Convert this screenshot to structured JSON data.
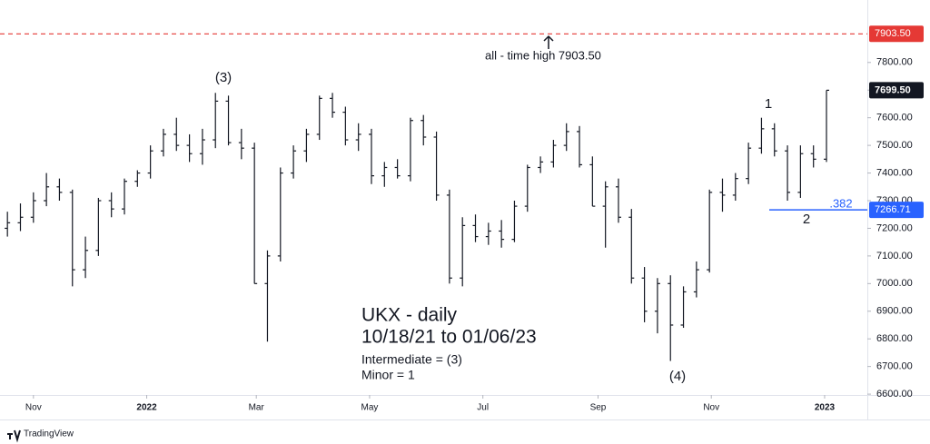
{
  "chart_data": {
    "type": "ohlc",
    "x": [
      "2021-10-18",
      "2021-10-25",
      "2021-11-01",
      "2021-11-08",
      "2021-11-15",
      "2021-11-22",
      "2021-11-29",
      "2021-12-06",
      "2021-12-13",
      "2021-12-20",
      "2021-12-27",
      "2022-01-03",
      "2022-01-10",
      "2022-01-17",
      "2022-01-24",
      "2022-01-31",
      "2022-02-07",
      "2022-02-14",
      "2022-02-21",
      "2022-02-28",
      "2022-03-07",
      "2022-03-14",
      "2022-03-21",
      "2022-03-28",
      "2022-04-04",
      "2022-04-11",
      "2022-04-18",
      "2022-04-25",
      "2022-05-02",
      "2022-05-09",
      "2022-05-16",
      "2022-05-23",
      "2022-05-30",
      "2022-06-06",
      "2022-06-13",
      "2022-06-20",
      "2022-06-27",
      "2022-07-04",
      "2022-07-11",
      "2022-07-18",
      "2022-07-25",
      "2022-08-01",
      "2022-08-08",
      "2022-08-15",
      "2022-08-22",
      "2022-08-29",
      "2022-09-05",
      "2022-09-12",
      "2022-09-19",
      "2022-09-26",
      "2022-10-03",
      "2022-10-10",
      "2022-10-17",
      "2022-10-24",
      "2022-10-31",
      "2022-11-07",
      "2022-11-14",
      "2022-11-21",
      "2022-11-28",
      "2022-12-05",
      "2022-12-12",
      "2022-12-19",
      "2022-12-26",
      "2023-01-02"
    ],
    "open": [
      7200,
      7220,
      7240,
      7300,
      7350,
      7330,
      7050,
      7120,
      7300,
      7270,
      7370,
      7400,
      7480,
      7540,
      7500,
      7470,
      7520,
      7660,
      7510,
      7490,
      7000,
      7100,
      7400,
      7480,
      7540,
      7670,
      7620,
      7520,
      7540,
      7390,
      7420,
      7390,
      7590,
      7530,
      7320,
      7020,
      7210,
      7170,
      7190,
      7160,
      7280,
      7420,
      7440,
      7500,
      7550,
      7430,
      7280,
      7350,
      7240,
      7020,
      6900,
      7000,
      6850,
      6970,
      7050,
      7330,
      7320,
      7380,
      7490,
      7560,
      7480,
      7330,
      7470,
      7450
    ],
    "high": [
      7260,
      7290,
      7330,
      7400,
      7380,
      7340,
      7170,
      7310,
      7330,
      7380,
      7410,
      7500,
      7560,
      7600,
      7540,
      7560,
      7690,
      7680,
      7560,
      7510,
      7120,
      7420,
      7500,
      7560,
      7680,
      7690,
      7640,
      7580,
      7560,
      7440,
      7450,
      7600,
      7610,
      7550,
      7340,
      7240,
      7250,
      7220,
      7230,
      7300,
      7430,
      7460,
      7520,
      7580,
      7570,
      7460,
      7370,
      7380,
      7270,
      7060,
      7020,
      7030,
      6990,
      7080,
      7340,
      7380,
      7400,
      7510,
      7600,
      7580,
      7500,
      7500,
      7500,
      7699.5
    ],
    "low": [
      7170,
      7190,
      7220,
      7280,
      7300,
      6990,
      7020,
      7100,
      7240,
      7250,
      7350,
      7380,
      7460,
      7480,
      7440,
      7430,
      7490,
      7500,
      7450,
      7000,
      6790,
      7080,
      7380,
      7440,
      7520,
      7600,
      7500,
      7480,
      7360,
      7350,
      7380,
      7370,
      7500,
      7300,
      7000,
      6990,
      7150,
      7140,
      7130,
      7150,
      7260,
      7400,
      7420,
      7480,
      7420,
      7280,
      7130,
      7220,
      7000,
      6860,
      6820,
      6720,
      6840,
      6950,
      7040,
      7260,
      7300,
      7360,
      7470,
      7460,
      7300,
      7310,
      7420,
      7440
    ],
    "close": [
      7220,
      7240,
      7300,
      7350,
      7330,
      7050,
      7120,
      7300,
      7270,
      7370,
      7400,
      7480,
      7540,
      7500,
      7470,
      7520,
      7660,
      7510,
      7490,
      7000,
      7100,
      7400,
      7480,
      7540,
      7670,
      7620,
      7520,
      7540,
      7390,
      7420,
      7390,
      7590,
      7530,
      7320,
      7020,
      7210,
      7170,
      7190,
      7160,
      7280,
      7420,
      7440,
      7500,
      7550,
      7430,
      7280,
      7350,
      7240,
      7020,
      6900,
      7000,
      6850,
      6970,
      7050,
      7330,
      7320,
      7380,
      7490,
      7560,
      7480,
      7330,
      7470,
      7450,
      7699.5
    ],
    "last_label": {
      "value": 7699.5,
      "label": "7699.50"
    },
    "color": "#131722",
    "xlim": [
      "2021-10-14",
      "2023-01-24"
    ],
    "xticks": [
      {
        "value": "2021-11-01",
        "label": "Nov"
      },
      {
        "value": "2022-01-01",
        "label": "2022"
      },
      {
        "value": "2022-03-01",
        "label": "Mar"
      },
      {
        "value": "2022-05-01",
        "label": "May"
      },
      {
        "value": "2022-07-01",
        "label": "Jul"
      },
      {
        "value": "2022-09-01",
        "label": "Sep"
      },
      {
        "value": "2022-11-01",
        "label": "Nov"
      },
      {
        "value": "2023-01-01",
        "label": "2023"
      }
    ],
    "ylim": [
      6597,
      8026
    ],
    "yticks": [
      {
        "value": 6600,
        "label": "6600.00"
      },
      {
        "value": 6700,
        "label": "6700.00"
      },
      {
        "value": 6800,
        "label": "6800.00"
      },
      {
        "value": 6900,
        "label": "6900.00"
      },
      {
        "value": 7000,
        "label": "7000.00"
      },
      {
        "value": 7100,
        "label": "7100.00"
      },
      {
        "value": 7200,
        "label": "7200.00"
      },
      {
        "value": 7300,
        "label": "7300.00"
      },
      {
        "value": 7400,
        "label": "7400.00"
      },
      {
        "value": 7500,
        "label": "7500.00"
      },
      {
        "value": 7600,
        "label": "7600.00"
      },
      {
        "value": 7700,
        "label": "7700.00"
      },
      {
        "value": 7800,
        "label": "7800.00"
      }
    ],
    "hlines": [
      {
        "value": 7903.5,
        "label": "7903.50",
        "color": "#e53935"
      },
      {
        "value": 7266.71,
        "color": "#2962ff"
      }
    ],
    "annotations": [
      "all - time high 7903.50",
      "(3)",
      "1",
      "2",
      ".382",
      "(4)"
    ],
    "title": [
      "UKX - daily",
      "10/18/21 to 01/06/23"
    ],
    "notes": [
      "Intermediate = (3)",
      "Minor = 1"
    ],
    "brand": "TradingView"
  }
}
